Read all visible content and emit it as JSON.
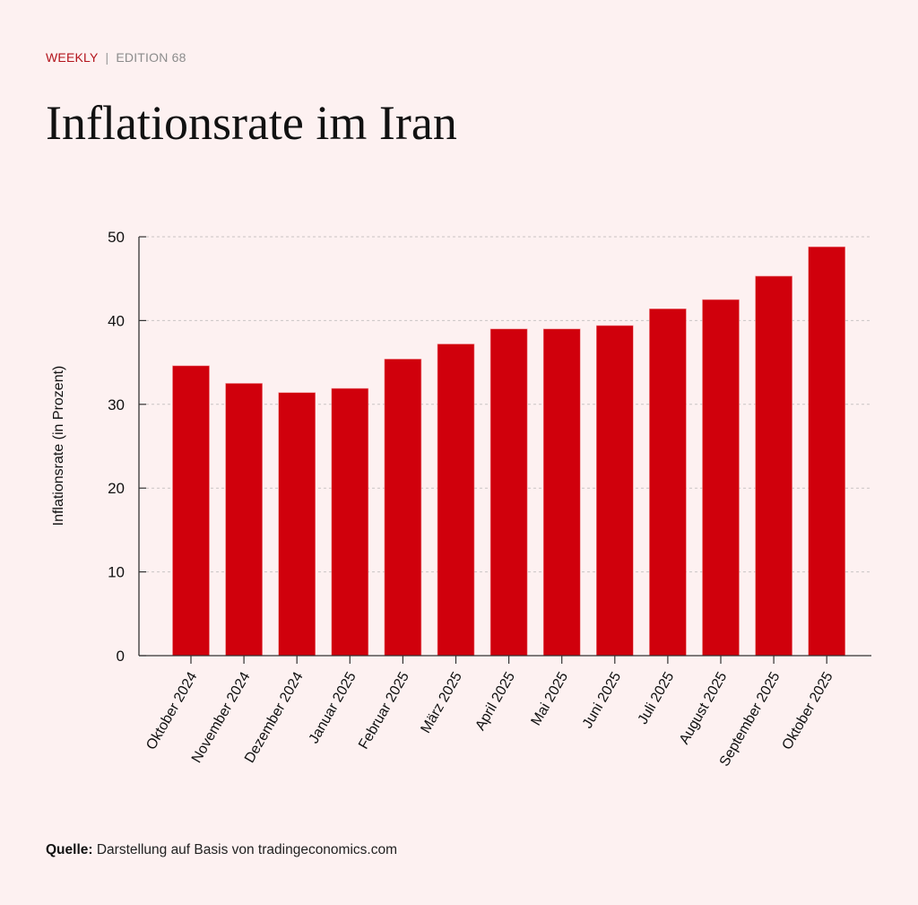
{
  "header": {
    "kicker_label": "WEEKLY",
    "kicker_separator": "|",
    "edition_label": "EDITION 68",
    "title": "Inflationsrate im Iran"
  },
  "footer": {
    "source_label": "Quelle:",
    "source_text": "Darstellung auf Basis von tradingeconomics.com"
  },
  "colors": {
    "bar": "#d0000c",
    "accent": "#b3141c",
    "background": "#fdf1f1"
  },
  "chart_data": {
    "type": "bar",
    "title": "Inflationsrate im Iran",
    "xlabel": "",
    "ylabel": "Inflationsrate (in Prozent)",
    "ylim": [
      0,
      50
    ],
    "yticks": [
      0,
      10,
      20,
      30,
      40,
      50
    ],
    "grid": true,
    "legend": "none",
    "categories": [
      "Oktober 2024",
      "November 2024",
      "Dezember 2024",
      "Januar 2025",
      "Februar 2025",
      "März 2025",
      "April 2025",
      "Mai 2025",
      "Juni 2025",
      "Juli 2025",
      "August 2025",
      "September 2025",
      "Oktober 2025"
    ],
    "values": [
      34.6,
      32.5,
      31.4,
      31.9,
      35.4,
      37.2,
      39.0,
      39.0,
      39.4,
      41.4,
      42.5,
      45.3,
      48.8
    ]
  }
}
